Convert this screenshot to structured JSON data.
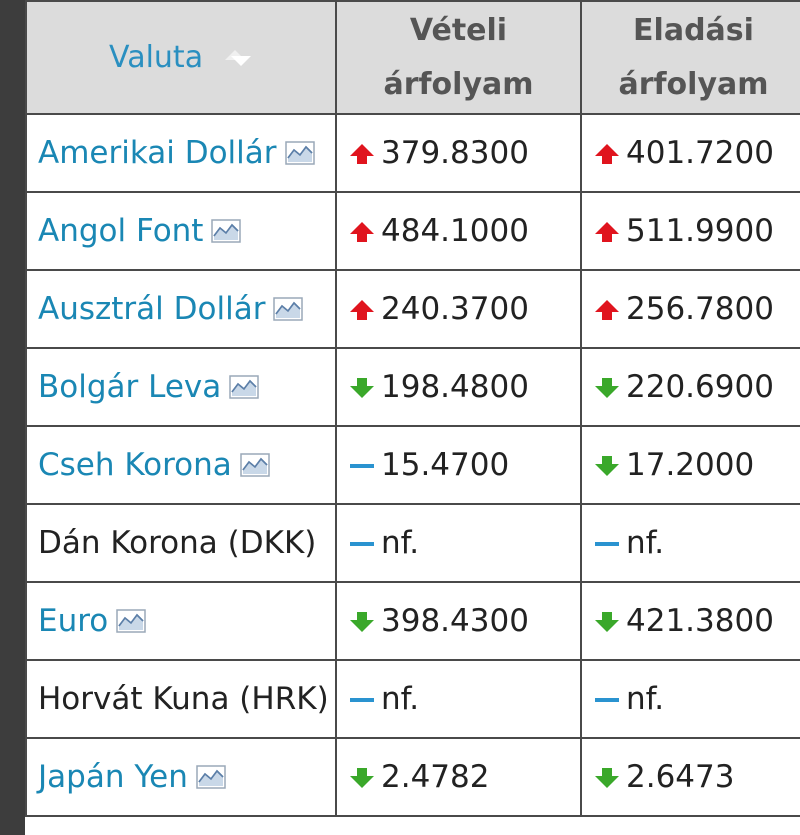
{
  "table": {
    "headers": {
      "currency": "Valuta",
      "buy_line1": "Vételi",
      "buy_line2": "árfolyam",
      "sell_line1": "Eladási",
      "sell_line2": "árfolyam"
    },
    "rows": [
      {
        "name": "Amerikai Dollár",
        "link": true,
        "chart_icon": true,
        "buy": "379.8300",
        "buy_trend": "up",
        "sell": "401.7200",
        "sell_trend": "up"
      },
      {
        "name": "Angol Font",
        "link": true,
        "chart_icon": true,
        "buy": "484.1000",
        "buy_trend": "up",
        "sell": "511.9900",
        "sell_trend": "up"
      },
      {
        "name": "Ausztrál Dollár",
        "link": true,
        "chart_icon": true,
        "buy": "240.3700",
        "buy_trend": "up",
        "sell": "256.7800",
        "sell_trend": "up"
      },
      {
        "name": "Bolgár Leva",
        "link": true,
        "chart_icon": true,
        "buy": "198.4800",
        "buy_trend": "down",
        "sell": "220.6900",
        "sell_trend": "down"
      },
      {
        "name": "Cseh Korona",
        "link": true,
        "chart_icon": true,
        "buy": "15.4700",
        "buy_trend": "flat",
        "sell": "17.2000",
        "sell_trend": "down"
      },
      {
        "name": "Dán Korona (DKK)",
        "link": false,
        "chart_icon": false,
        "buy": "nf.",
        "buy_trend": "flat",
        "sell": "nf.",
        "sell_trend": "flat"
      },
      {
        "name": "Euro",
        "link": true,
        "chart_icon": true,
        "buy": "398.4300",
        "buy_trend": "down",
        "sell": "421.3800",
        "sell_trend": "down"
      },
      {
        "name": "Horvát Kuna (HRK)",
        "link": false,
        "chart_icon": false,
        "buy": "nf.",
        "buy_trend": "flat",
        "sell": "nf.",
        "sell_trend": "flat"
      },
      {
        "name": "Japán Yen",
        "link": true,
        "chart_icon": true,
        "buy": "2.4782",
        "buy_trend": "down",
        "sell": "2.6473",
        "sell_trend": "down"
      }
    ]
  },
  "colors": {
    "link": "#1a87b4",
    "header_bg": "#dcdcdc",
    "trend_up": "#e0141e",
    "trend_down": "#3aa82a",
    "trend_flat": "#2a93d0",
    "sidebar": "#3d3d3d"
  },
  "icons": {
    "sort": "sort-icon",
    "chart": "chart-icon",
    "up": "trend-up-icon",
    "down": "trend-down-icon",
    "flat": "trend-flat-icon"
  }
}
